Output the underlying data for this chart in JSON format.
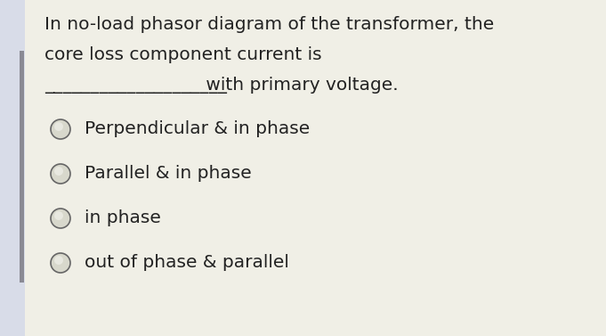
{
  "bg_left_color": "#d8dce8",
  "bg_main_color": "#f0efe6",
  "left_bar_color": "#8a8a94",
  "question_line1": "In no-load phasor diagram of the transformer, the",
  "question_line2": "core loss component current is",
  "question_line3_blank": "————————————————————",
  "question_line3_text": " with primary voltage.",
  "options": [
    "Perpendicular & in phase",
    "Parallel & in phase",
    "in phase",
    "out of phase & parallel"
  ],
  "text_color": "#222222",
  "circle_edge_color": "#666666",
  "circle_inner_color": "#d8d8cc",
  "font_size_question": 14.5,
  "font_size_option": 14.5,
  "underline_text": "____________________"
}
